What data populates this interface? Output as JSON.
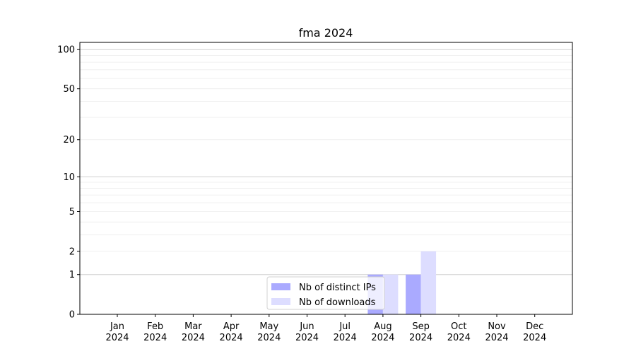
{
  "chart_data": {
    "type": "bar",
    "title": "fma 2024",
    "xlabel": "",
    "ylabel": "",
    "y_scale": "log(1+y)",
    "ylim": [
      0,
      113
    ],
    "y_ticks": [
      0,
      1,
      2,
      5,
      10,
      20,
      50,
      100
    ],
    "grid": "horizontal",
    "legend_position": "lower-center",
    "categories": [
      "Jan\n2024",
      "Feb\n2024",
      "Mar\n2024",
      "Apr\n2024",
      "May\n2024",
      "Jun\n2024",
      "Jul\n2024",
      "Aug\n2024",
      "Sep\n2024",
      "Oct\n2024",
      "Nov\n2024",
      "Dec\n2024"
    ],
    "series": [
      {
        "name": "Nb of distinct IPs",
        "color": "#aaaaff",
        "values": [
          0,
          0,
          0,
          0,
          0,
          0,
          0,
          1,
          1,
          0,
          0,
          0
        ]
      },
      {
        "name": "Nb of downloads",
        "color": "#ddddff",
        "values": [
          0,
          0,
          0,
          0,
          0,
          0,
          0,
          1,
          2,
          0,
          0,
          0
        ]
      }
    ]
  }
}
